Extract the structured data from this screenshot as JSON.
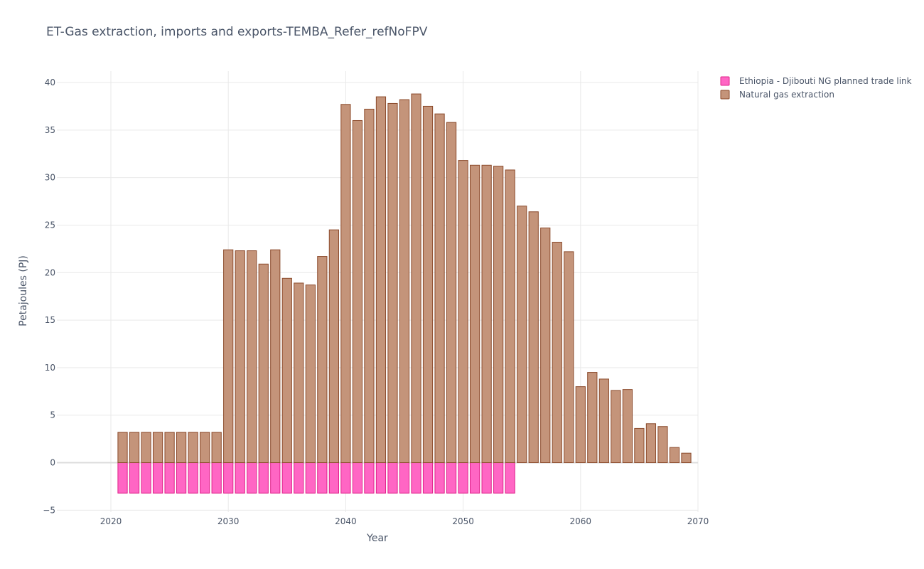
{
  "chart_data": {
    "type": "bar",
    "title": "ET-Gas extraction, imports and exports-TEMBA_Refer_refNoFPV",
    "xlabel": "Year",
    "ylabel": "Petajoules (PJ)",
    "xlim": [
      2015.4,
      2070
    ],
    "ylim": [
      -5.2,
      41.2
    ],
    "x_ticks": [
      2020,
      2030,
      2040,
      2050,
      2060,
      2070
    ],
    "x_tick_labels": [
      "2020",
      "2030",
      "2040",
      "2050",
      "2060",
      "2070"
    ],
    "y_ticks": [
      -5,
      0,
      5,
      10,
      15,
      20,
      25,
      30,
      35,
      40
    ],
    "y_tick_labels": [
      "−5",
      "0",
      "5",
      "10",
      "15",
      "20",
      "25",
      "30",
      "35",
      "40"
    ],
    "grid": true,
    "legend_position": "top-right outside",
    "barmode": "relative",
    "x": [
      2021,
      2022,
      2023,
      2024,
      2025,
      2026,
      2027,
      2028,
      2029,
      2030,
      2031,
      2032,
      2033,
      2034,
      2035,
      2036,
      2037,
      2038,
      2039,
      2040,
      2041,
      2042,
      2043,
      2044,
      2045,
      2046,
      2047,
      2048,
      2049,
      2050,
      2051,
      2052,
      2053,
      2054,
      2055,
      2056,
      2057,
      2058,
      2059,
      2060,
      2061,
      2062,
      2063,
      2064,
      2065,
      2066,
      2067,
      2068,
      2069
    ],
    "series": [
      {
        "name": "Ethiopia - Djibouti NG planned trade link",
        "color": "#ff66c4",
        "edge_color": "#e0218a",
        "values": [
          -3.2,
          -3.2,
          -3.2,
          -3.2,
          -3.2,
          -3.2,
          -3.2,
          -3.2,
          -3.2,
          -3.2,
          -3.2,
          -3.2,
          -3.2,
          -3.2,
          -3.2,
          -3.2,
          -3.2,
          -3.2,
          -3.2,
          -3.2,
          -3.2,
          -3.2,
          -3.2,
          -3.2,
          -3.2,
          -3.2,
          -3.2,
          -3.2,
          -3.2,
          -3.2,
          -3.2,
          -3.2,
          -3.2,
          -3.2,
          0,
          0,
          0,
          0,
          0,
          0,
          0,
          0,
          0,
          0,
          0,
          0,
          0,
          0,
          0
        ]
      },
      {
        "name": "Natural gas extraction",
        "color": "#c4947a",
        "edge_color": "#8b4a2b",
        "values": [
          3.2,
          3.2,
          3.2,
          3.2,
          3.2,
          3.2,
          3.2,
          3.2,
          3.2,
          22.4,
          22.3,
          22.3,
          20.9,
          22.4,
          19.4,
          18.9,
          18.7,
          21.7,
          24.5,
          37.7,
          36.0,
          37.2,
          38.5,
          37.8,
          38.2,
          38.8,
          37.5,
          36.7,
          35.8,
          31.8,
          31.3,
          31.3,
          31.2,
          30.8,
          27.0,
          26.4,
          24.7,
          23.2,
          22.2,
          8.0,
          9.5,
          8.8,
          7.6,
          7.7,
          3.6,
          4.1,
          3.8,
          1.6,
          1.0
        ]
      }
    ]
  }
}
